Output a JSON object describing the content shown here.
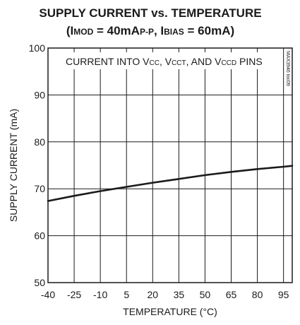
{
  "chart_data": {
    "type": "line",
    "title_line1": "SUPPLY CURRENT vs. TEMPERATURE",
    "title_line2": [
      {
        "text": "(I",
        "sub": false
      },
      {
        "text": "MOD",
        "sub": true
      },
      {
        "text": " = 40mA",
        "sub": false
      },
      {
        "text": "P-P",
        "sub": true
      },
      {
        "text": ", I",
        "sub": false
      },
      {
        "text": "BIAS",
        "sub": true
      },
      {
        "text": " = 60mA)",
        "sub": false
      }
    ],
    "annotation": [
      {
        "text": "CURRENT INTO V",
        "sub": false
      },
      {
        "text": "CC",
        "sub": true
      },
      {
        "text": ", V",
        "sub": false
      },
      {
        "text": "CCT",
        "sub": true
      },
      {
        "text": ", AND V",
        "sub": false
      },
      {
        "text": "CCD",
        "sub": true
      },
      {
        "text": " PINS",
        "sub": false
      }
    ],
    "watermark": "MAX3946 toc09",
    "xlabel": "TEMPERATURE (°C)",
    "ylabel": "SUPPLY CURRENT (mA)",
    "xlim": [
      -40,
      100
    ],
    "ylim": [
      50,
      100
    ],
    "x_ticks": [
      -40,
      -25,
      -10,
      5,
      20,
      35,
      50,
      65,
      80,
      95
    ],
    "y_ticks": [
      50,
      60,
      70,
      80,
      90,
      100
    ],
    "grid": true,
    "series": [
      {
        "x": [
          -40,
          -25,
          -10,
          5,
          20,
          35,
          50,
          65,
          80,
          95,
          100
        ],
        "y": [
          67.4,
          68.5,
          69.5,
          70.4,
          71.3,
          72.1,
          72.9,
          73.6,
          74.2,
          74.7,
          74.9
        ]
      }
    ]
  }
}
